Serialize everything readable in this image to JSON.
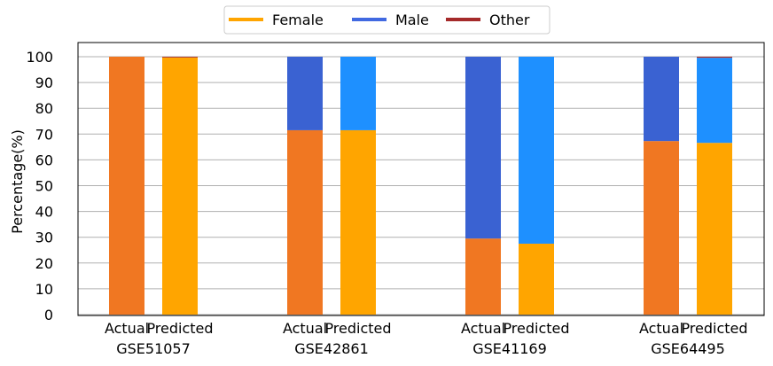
{
  "chart_data": {
    "type": "bar",
    "stacked": true,
    "ylabel": "Percentage(%)",
    "xlabel": "",
    "ylim": [
      0,
      100
    ],
    "yticks": [
      0,
      10,
      20,
      30,
      40,
      50,
      60,
      70,
      80,
      90,
      100
    ],
    "grid": "horizontal",
    "legend_placement": "top-center",
    "legend": [
      {
        "name": "Female",
        "color": "#ffa500"
      },
      {
        "name": "Male",
        "color": "#4169e1"
      },
      {
        "name": "Other",
        "color": "#a52a2a"
      }
    ],
    "groups": [
      {
        "name": "GSE51057",
        "bars": [
          {
            "label": "Actual",
            "kind": "actual",
            "female": 100,
            "male": 0,
            "other": 0
          },
          {
            "label": "Predicted",
            "kind": "predicted",
            "female": 99.7,
            "male": 0,
            "other": 0.3
          }
        ]
      },
      {
        "name": "GSE42861",
        "bars": [
          {
            "label": "Actual",
            "kind": "actual",
            "female": 71.5,
            "male": 28.5,
            "other": 0
          },
          {
            "label": "Predicted",
            "kind": "predicted",
            "female": 71.5,
            "male": 28.5,
            "other": 0
          }
        ]
      },
      {
        "name": "GSE41169",
        "bars": [
          {
            "label": "Actual",
            "kind": "actual",
            "female": 29.5,
            "male": 70.5,
            "other": 0
          },
          {
            "label": "Predicted",
            "kind": "predicted",
            "female": 27.5,
            "male": 72.5,
            "other": 0
          }
        ]
      },
      {
        "name": "GSE64495",
        "bars": [
          {
            "label": "Actual",
            "kind": "actual",
            "female": 67.3,
            "male": 32.7,
            "other": 0
          },
          {
            "label": "Predicted",
            "kind": "predicted",
            "female": 66.6,
            "male": 33.0,
            "other": 0.4
          }
        ]
      }
    ],
    "colors": {
      "actual_female": "#f07722",
      "actual_male": "#3a62d2",
      "predicted_female": "#ffa500",
      "predicted_male": "#1e90ff",
      "other": "#a52a2a"
    }
  }
}
